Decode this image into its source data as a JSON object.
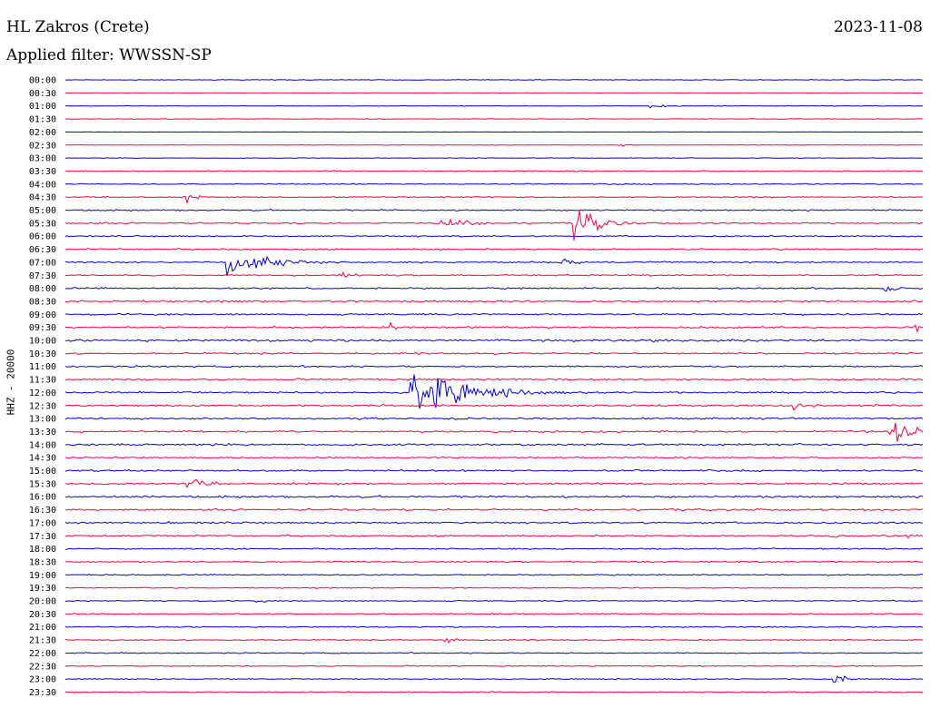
{
  "header": {
    "station": "HL Zakros (Crete)",
    "date": "2023-11-08",
    "filter": "Applied filter: WWSSN-SP",
    "channel_label": "HHZ - 20000"
  },
  "colors": {
    "even_rows": "#0000e0",
    "odd_rows": "#ff0040"
  },
  "chart_data": {
    "type": "line",
    "title": "HL Zakros (Crete)",
    "subtitle": "2023-11-08",
    "ylabel": "HHZ - 20000",
    "row_labels": [
      "00:00",
      "00:30",
      "01:00",
      "01:30",
      "02:00",
      "02:30",
      "03:00",
      "03:30",
      "04:00",
      "04:30",
      "05:00",
      "05:30",
      "06:00",
      "06:30",
      "07:00",
      "07:30",
      "08:00",
      "08:30",
      "09:00",
      "09:30",
      "10:00",
      "10:30",
      "11:00",
      "11:30",
      "12:00",
      "12:30",
      "13:00",
      "13:30",
      "14:00",
      "14:30",
      "15:00",
      "15:30",
      "16:00",
      "16:30",
      "17:00",
      "17:30",
      "18:00",
      "18:30",
      "19:00",
      "19:30",
      "20:00",
      "20:30",
      "21:00",
      "21:30",
      "22:00",
      "22:30",
      "23:00",
      "23:30"
    ],
    "row_minutes": 30,
    "noise_levels": [
      0.6,
      0.3,
      0.5,
      0.6,
      0.3,
      0.4,
      0.5,
      0.9,
      0.9,
      1.0,
      1.3,
      1.3,
      1.2,
      1.3,
      1.3,
      1.3,
      1.3,
      1.6,
      1.5,
      1.6,
      2.0,
      1.5,
      1.4,
      1.5,
      1.5,
      1.7,
      1.6,
      1.6,
      1.7,
      1.2,
      1.5,
      1.5,
      1.8,
      1.7,
      1.5,
      1.3,
      1.2,
      1.2,
      1.0,
      0.9,
      1.0,
      1.0,
      1.0,
      1.1,
      0.9,
      0.9,
      0.9,
      1.0
    ],
    "events": [
      {
        "row": 2,
        "minute": 20.5,
        "amplitude": 4,
        "duration_min": 1.0
      },
      {
        "row": 5,
        "minute": 19.4,
        "amplitude": 4,
        "duration_min": 0.4
      },
      {
        "row": 9,
        "minute": 4.3,
        "amplitude": 9,
        "duration_min": 0.5
      },
      {
        "row": 11,
        "minute": 13.2,
        "amplitude": 9,
        "duration_min": 1.8
      },
      {
        "row": 11,
        "minute": 17.8,
        "amplitude": 26,
        "duration_min": 1.5
      },
      {
        "row": 14,
        "minute": 5.7,
        "amplitude": 26,
        "duration_min": 2.5
      },
      {
        "row": 14,
        "minute": 17.3,
        "amplitude": 7,
        "duration_min": 1.0
      },
      {
        "row": 15,
        "minute": 9.6,
        "amplitude": 5,
        "duration_min": 1.0
      },
      {
        "row": 16,
        "minute": 28.7,
        "amplitude": 6,
        "duration_min": 0.8
      },
      {
        "row": 19,
        "minute": 11.4,
        "amplitude": 8,
        "duration_min": 0.4
      },
      {
        "row": 19,
        "minute": 29.7,
        "amplitude": 8,
        "duration_min": 0.4
      },
      {
        "row": 24,
        "minute": 12.1,
        "amplitude": 46,
        "duration_min": 3.0
      },
      {
        "row": 25,
        "minute": 25.5,
        "amplitude": 7,
        "duration_min": 1.0
      },
      {
        "row": 27,
        "minute": 28.9,
        "amplitude": 18,
        "duration_min": 1.5
      },
      {
        "row": 31,
        "minute": 4.3,
        "amplitude": 11,
        "duration_min": 1.2
      },
      {
        "row": 35,
        "minute": 26.8,
        "amplitude": 5,
        "duration_min": 0.6
      },
      {
        "row": 35,
        "minute": 29.5,
        "amplitude": 5,
        "duration_min": 0.6
      },
      {
        "row": 40,
        "minute": 6.7,
        "amplitude": 4,
        "duration_min": 0.6
      },
      {
        "row": 43,
        "minute": 13.3,
        "amplitude": 9,
        "duration_min": 0.5
      },
      {
        "row": 46,
        "minute": 26.9,
        "amplitude": 10,
        "duration_min": 0.7
      }
    ]
  }
}
